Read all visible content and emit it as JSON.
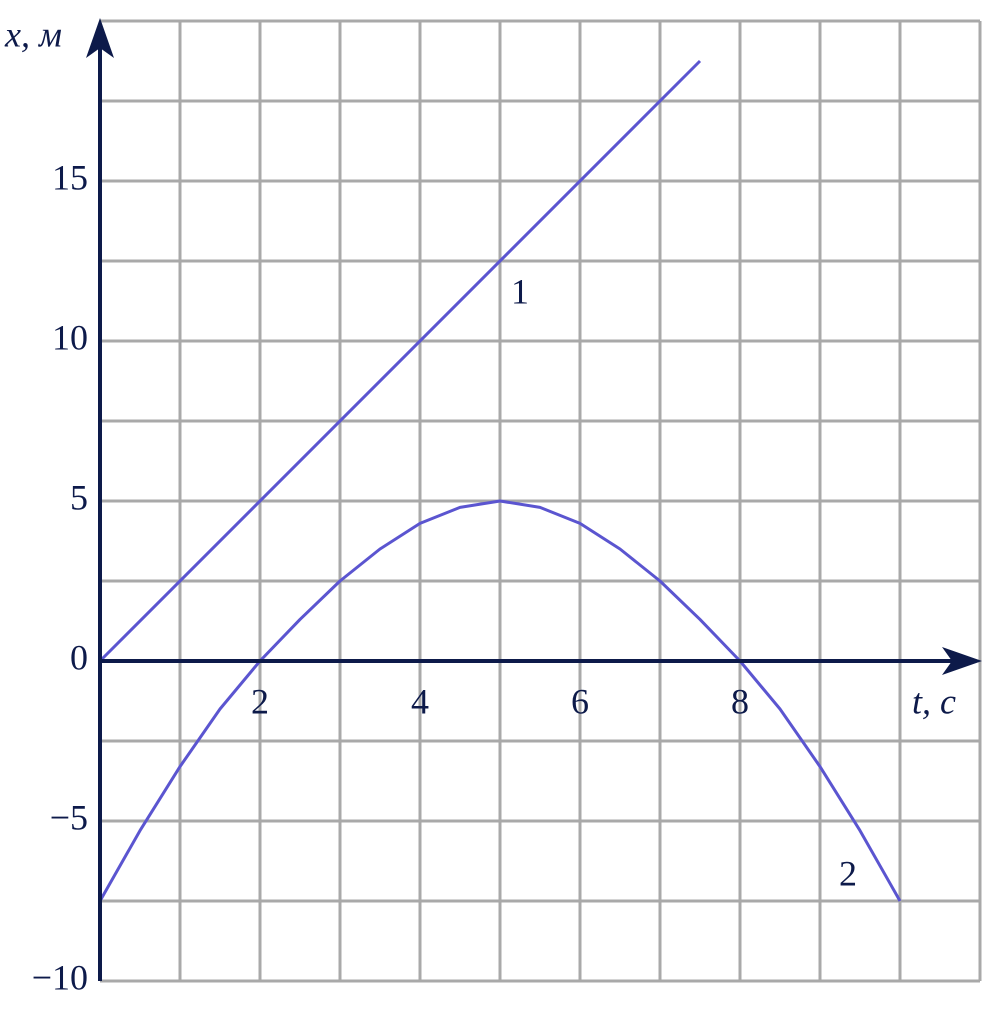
{
  "chart_data": {
    "type": "line",
    "xlabel": "t, с",
    "ylabel": "x, м",
    "xlim": [
      0,
      11
    ],
    "ylim": [
      -10,
      20
    ],
    "xticks": [
      2,
      4,
      6,
      8
    ],
    "yticks": [
      {
        "value": -10,
        "label": "−10"
      },
      {
        "value": -5,
        "label": "−5"
      },
      0,
      5,
      10,
      15
    ],
    "grid": true,
    "series": [
      {
        "name": "1",
        "color": "#5b55d0",
        "x": [
          0,
          7.5
        ],
        "values": [
          0,
          18.75
        ]
      },
      {
        "name": "2",
        "color": "#5b55d0",
        "x": [
          0,
          0.5,
          1,
          1.5,
          2,
          2.5,
          3,
          3.5,
          4,
          4.5,
          5,
          5.5,
          6,
          6.5,
          7,
          7.5,
          8,
          8.5,
          9,
          9.5,
          10
        ],
        "values": [
          -7.5,
          -5.3,
          -3.3,
          -1.5,
          0,
          1.3,
          2.5,
          3.5,
          4.3,
          4.8,
          5,
          4.8,
          4.3,
          3.5,
          2.5,
          1.3,
          0,
          -1.5,
          -3.3,
          -5.3,
          -7.5
        ]
      }
    ]
  }
}
